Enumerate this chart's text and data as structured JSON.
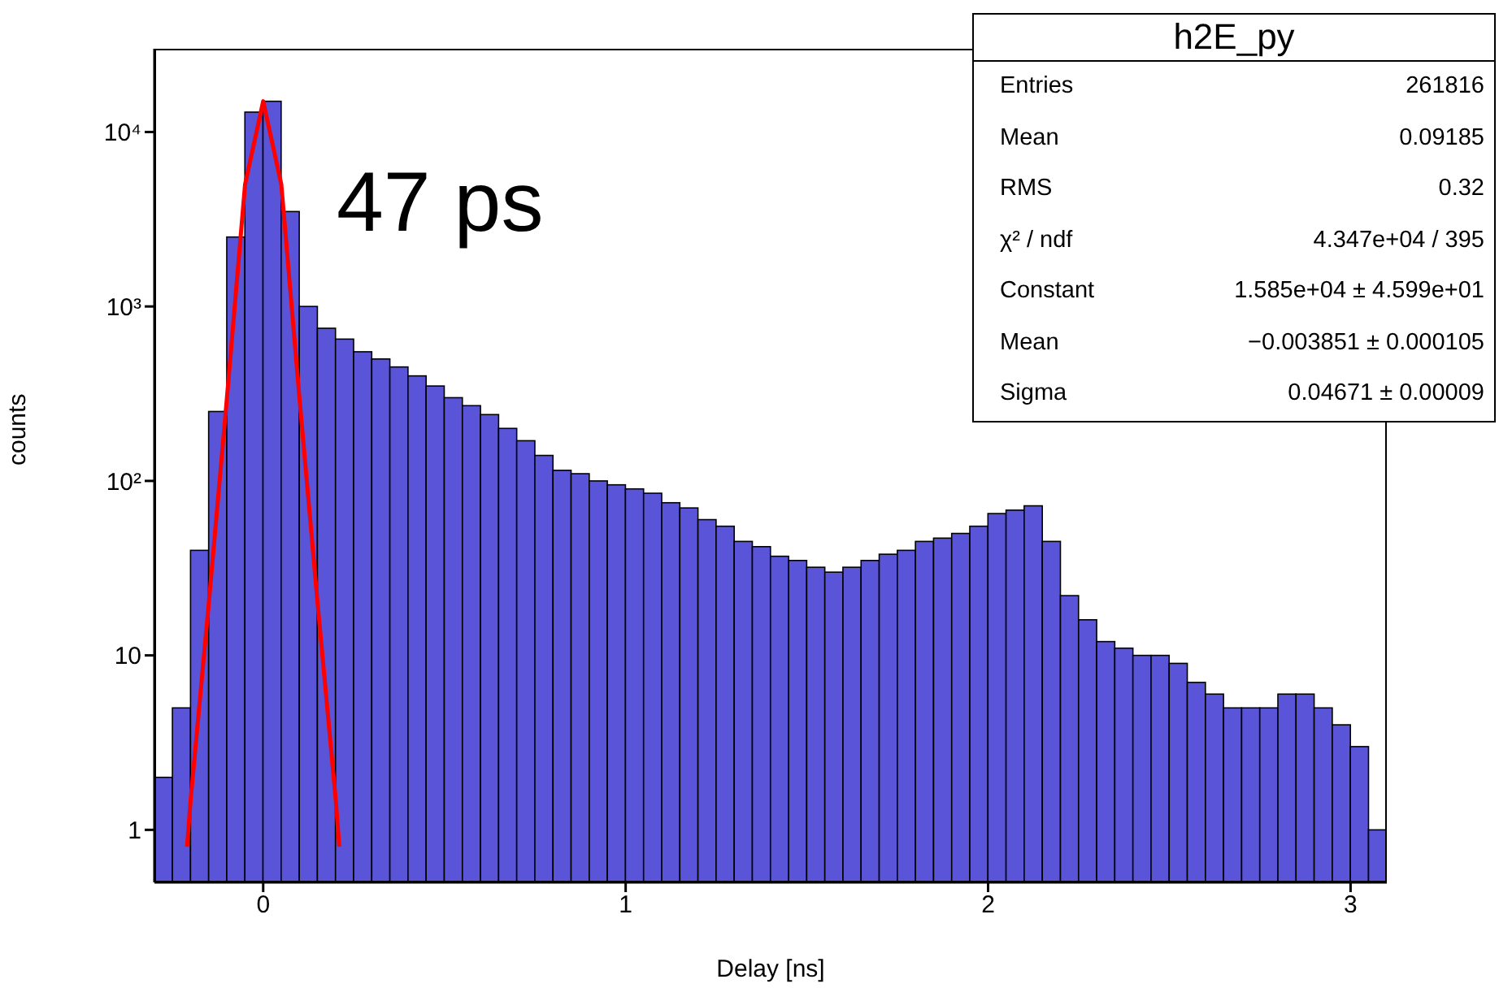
{
  "chart_data": {
    "type": "histogram",
    "xlabel": "Delay [ns]",
    "ylabel": "counts",
    "bins": [
      -0.3,
      -0.25,
      -0.2,
      -0.15,
      -0.1,
      -0.05,
      0,
      0.05,
      0.1,
      0.15,
      0.2,
      0.25,
      0.3,
      0.35,
      0.4,
      0.45,
      0.5,
      0.55,
      0.6,
      0.65,
      0.7,
      0.75,
      0.8,
      0.85,
      0.9,
      0.95,
      1,
      1.05,
      1.1,
      1.15,
      1.2,
      1.25,
      1.3,
      1.35,
      1.4,
      1.45,
      1.5,
      1.55,
      1.6,
      1.65,
      1.7,
      1.75,
      1.8,
      1.85,
      1.9,
      1.95,
      2,
      2.05,
      2.1,
      2.15,
      2.2,
      2.25,
      2.3,
      2.35,
      2.4,
      2.45,
      2.5,
      2.55,
      2.6,
      2.65,
      2.7,
      2.75,
      2.8,
      2.85,
      2.9,
      2.95,
      3,
      3.05,
      3.1
    ],
    "values": [
      2,
      5,
      40,
      250,
      2500,
      13000,
      15000,
      3500,
      1000,
      750,
      650,
      550,
      500,
      450,
      400,
      350,
      300,
      270,
      240,
      200,
      170,
      140,
      115,
      110,
      100,
      95,
      90,
      85,
      75,
      70,
      60,
      55,
      45,
      42,
      37,
      35,
      32,
      30,
      32,
      35,
      38,
      40,
      45,
      47,
      50,
      55,
      65,
      68,
      72,
      45,
      22,
      16,
      12,
      11,
      10,
      10,
      9,
      7,
      6,
      5,
      5,
      5,
      6,
      6,
      5,
      4,
      3,
      1
    ],
    "color": "#5a55d8",
    "series": [
      {
        "type": "line",
        "color": "#ff0000",
        "x": [
          -0.21,
          -0.2,
          -0.15,
          -0.1,
          -0.05,
          0,
          0.05,
          0.1,
          0.15,
          0.2,
          0.21
        ],
        "values": [
          0.8,
          1.5,
          20,
          300,
          5000,
          15000,
          5000,
          300,
          20,
          1.5,
          0.8
        ]
      }
    ],
    "xlim": [
      -0.3,
      3.1
    ],
    "xticks": [
      0,
      1,
      2,
      3
    ],
    "ylim": [
      0.5,
      30000
    ],
    "yticks": [
      1,
      10,
      {
        "value": 100,
        "label": "10²"
      },
      {
        "value": 1000,
        "label": "10³"
      },
      {
        "value": 10000,
        "label": "10⁴"
      }
    ],
    "log": true,
    "grid": false,
    "legend": false,
    "marker": "none",
    "line_style": "solid",
    "annotations": [
      "47 ps",
      "h2E_py",
      "Entries",
      "261816",
      "Mean",
      "0.09185",
      "RMS",
      "0.32",
      "χ² / ndf",
      "4.347e+04 / 395",
      "Constant",
      "1.585e+04 ± 4.599e+01",
      "Mean",
      "−0.003851 ± 0.000105",
      "Sigma",
      "0.04671 ± 0.00009"
    ]
  }
}
